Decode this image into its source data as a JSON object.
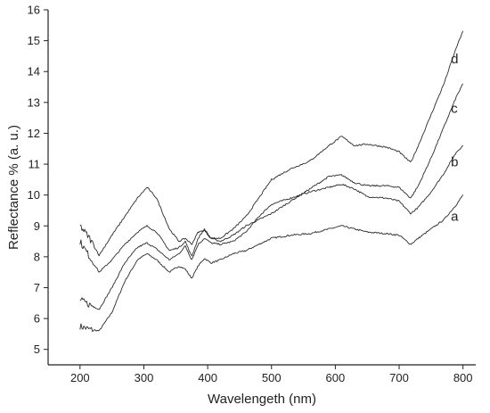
{
  "chart_data": {
    "type": "line",
    "xlabel": "Wavelengeth (nm)",
    "ylabel": "Reflectance % (a. u.)",
    "xlim": [
      150,
      820
    ],
    "ylim": [
      4.5,
      16
    ],
    "x_ticks": [
      200,
      300,
      400,
      500,
      600,
      700,
      800
    ],
    "y_ticks": [
      5,
      6,
      7,
      8,
      9,
      10,
      11,
      12,
      13,
      14,
      15,
      16
    ],
    "grid": false,
    "line_color": "#2a2a2a",
    "series": [
      {
        "label": "a",
        "x": [
          200,
          215,
          230,
          250,
          270,
          290,
          305,
          320,
          340,
          355,
          365,
          375,
          385,
          395,
          405,
          420,
          440,
          460,
          480,
          500,
          530,
          560,
          590,
          610,
          630,
          650,
          680,
          700,
          718,
          730,
          750,
          770,
          790,
          800
        ],
        "y": [
          5.75,
          5.65,
          5.6,
          6.2,
          7.2,
          7.9,
          8.1,
          7.9,
          7.5,
          7.7,
          7.6,
          7.3,
          7.7,
          7.95,
          7.8,
          7.9,
          8.1,
          8.2,
          8.4,
          8.6,
          8.7,
          8.75,
          8.9,
          9.0,
          8.9,
          8.8,
          8.75,
          8.7,
          8.4,
          8.6,
          8.9,
          9.2,
          9.7,
          10.0
        ]
      },
      {
        "label": "b",
        "x": [
          200,
          215,
          230,
          250,
          270,
          290,
          305,
          320,
          340,
          355,
          365,
          375,
          385,
          395,
          405,
          420,
          440,
          460,
          480,
          500,
          530,
          560,
          590,
          610,
          630,
          650,
          680,
          700,
          718,
          730,
          750,
          770,
          790,
          800
        ],
        "y": [
          6.6,
          6.45,
          6.3,
          7.0,
          7.8,
          8.3,
          8.45,
          8.25,
          7.9,
          8.1,
          8.35,
          7.9,
          8.4,
          8.6,
          8.45,
          8.4,
          8.5,
          8.8,
          9.3,
          9.7,
          9.9,
          10.1,
          10.25,
          10.35,
          10.2,
          9.95,
          9.9,
          9.8,
          9.4,
          9.6,
          10.1,
          10.7,
          11.4,
          11.6
        ]
      },
      {
        "label": "c",
        "x": [
          200,
          215,
          230,
          250,
          270,
          290,
          305,
          320,
          340,
          355,
          365,
          375,
          385,
          395,
          405,
          420,
          440,
          460,
          480,
          500,
          530,
          560,
          590,
          610,
          630,
          650,
          680,
          700,
          718,
          730,
          750,
          770,
          790,
          800
        ],
        "y": [
          8.5,
          8.0,
          7.5,
          7.9,
          8.4,
          8.8,
          9.0,
          8.8,
          8.2,
          8.3,
          8.5,
          8.0,
          8.6,
          8.9,
          8.6,
          8.5,
          8.7,
          9.0,
          9.2,
          9.4,
          9.8,
          10.2,
          10.6,
          10.65,
          10.4,
          10.3,
          10.3,
          10.25,
          9.9,
          10.3,
          11.2,
          12.2,
          13.2,
          13.6
        ]
      },
      {
        "label": "d",
        "x": [
          200,
          215,
          230,
          250,
          270,
          290,
          305,
          320,
          340,
          355,
          365,
          375,
          385,
          395,
          405,
          420,
          440,
          460,
          480,
          500,
          530,
          560,
          590,
          610,
          630,
          650,
          680,
          700,
          718,
          730,
          750,
          770,
          790,
          800
        ],
        "y": [
          9.0,
          8.6,
          8.05,
          8.7,
          9.3,
          9.9,
          10.25,
          9.9,
          8.9,
          8.5,
          8.6,
          8.4,
          8.8,
          8.85,
          8.6,
          8.6,
          8.9,
          9.3,
          9.9,
          10.5,
          10.85,
          11.1,
          11.6,
          11.9,
          11.6,
          11.65,
          11.55,
          11.4,
          11.05,
          11.6,
          12.6,
          13.6,
          14.8,
          15.3
        ]
      }
    ]
  }
}
